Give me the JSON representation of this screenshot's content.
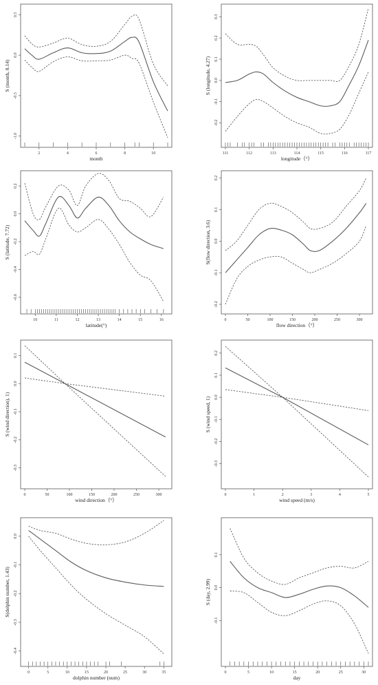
{
  "chart_data": [
    {
      "type": "line",
      "xlabel": "month",
      "ylabel": "S (month, 8.14)",
      "xlim": [
        1,
        11
      ],
      "ylim": [
        -1.02,
        0.58
      ],
      "xticks": [
        2,
        4,
        6,
        8,
        10
      ],
      "yticks": [
        -1.0,
        -0.5,
        0.0,
        0.5
      ],
      "ytick_labels": [
        "-1.0",
        "-0.5",
        "0.0",
        "0.5"
      ],
      "x": [
        1,
        1.5,
        2,
        3,
        4,
        5,
        6,
        7,
        8,
        8.5,
        9,
        10,
        11
      ],
      "fit": [
        0.08,
        0.0,
        -0.05,
        0.03,
        0.09,
        0.03,
        0.02,
        0.05,
        0.17,
        0.22,
        0.16,
        -0.33,
        -0.69
      ],
      "lower": [
        -0.06,
        -0.15,
        -0.2,
        -0.08,
        -0.02,
        -0.07,
        -0.07,
        -0.06,
        0.0,
        -0.04,
        -0.1,
        -0.58,
        -1.02
      ],
      "upper": [
        0.24,
        0.14,
        0.1,
        0.15,
        0.21,
        0.13,
        0.11,
        0.17,
        0.38,
        0.48,
        0.44,
        -0.11,
        -0.38
      ],
      "rug": [
        1,
        2,
        3,
        4,
        5,
        6,
        7,
        8,
        8.7,
        9,
        10,
        11
      ]
    },
    {
      "type": "line",
      "xlabel": "longitude（°）",
      "ylabel": "S (longitude, 4.27)",
      "xlim": [
        111,
        117
      ],
      "ylim": [
        -0.27,
        0.34
      ],
      "xticks": [
        111,
        112,
        113,
        114,
        115,
        116,
        117
      ],
      "yticks": [
        -0.2,
        -0.1,
        0.0,
        0.1,
        0.2,
        0.3
      ],
      "ytick_labels": [
        "-0.2",
        "-0.1",
        "0.0",
        "0.1",
        "0.2",
        "0.3"
      ],
      "x": [
        111,
        111.5,
        112,
        112.3,
        112.6,
        113,
        113.5,
        114,
        114.5,
        115,
        115.4,
        115.8,
        116.2,
        116.6,
        117
      ],
      "fit": [
        -0.01,
        0.0,
        0.03,
        0.04,
        0.03,
        -0.01,
        -0.05,
        -0.08,
        -0.1,
        -0.12,
        -0.12,
        -0.1,
        -0.02,
        0.07,
        0.19
      ],
      "lower": [
        -0.24,
        -0.17,
        -0.11,
        -0.09,
        -0.1,
        -0.13,
        -0.17,
        -0.2,
        -0.22,
        -0.25,
        -0.25,
        -0.23,
        -0.16,
        -0.06,
        0.04
      ],
      "upper": [
        0.22,
        0.17,
        0.17,
        0.16,
        0.12,
        0.06,
        0.02,
        0.0,
        0.0,
        0.0,
        0.0,
        0.0,
        0.07,
        0.17,
        0.34
      ],
      "rug": [
        111,
        111.1,
        111.2,
        111.5,
        111.7,
        111.8,
        112.0,
        112.1,
        112.2,
        112.5,
        112.6,
        112.8,
        112.9,
        113.0,
        113.1,
        113.2,
        113.3,
        113.4,
        113.5,
        113.6,
        113.7,
        113.8,
        113.9,
        114.0,
        114.1,
        114.2,
        114.3,
        114.4,
        114.5,
        114.6,
        114.7,
        114.8,
        114.9,
        115.0,
        115.1,
        115.2,
        115.3,
        115.5,
        115.6,
        115.8,
        115.9,
        116.0,
        116.1,
        116.2,
        116.4,
        116.5,
        116.6,
        116.7,
        116.8,
        116.9,
        117
      ]
    },
    {
      "type": "line",
      "xlabel": "latitude(°)",
      "ylabel": "S (latitude, 7.72)",
      "xlim": [
        9.5,
        16.3
      ],
      "ylim": [
        -0.65,
        0.28
      ],
      "xticks": [
        10,
        11,
        12,
        13,
        14,
        15,
        16
      ],
      "yticks": [
        -0.6,
        -0.4,
        -0.2,
        0.0,
        0.2
      ],
      "ytick_labels": [
        "-0.6",
        "-0.4",
        "-0.2",
        "0.0",
        "0.2"
      ],
      "x": [
        9.5,
        9.9,
        10.2,
        10.5,
        11.1,
        11.6,
        12.0,
        12.4,
        13.0,
        13.5,
        14.0,
        14.5,
        15.0,
        15.5,
        16.1
      ],
      "fit": [
        -0.05,
        -0.12,
        -0.16,
        -0.07,
        0.12,
        0.06,
        -0.03,
        0.04,
        0.12,
        0.06,
        -0.05,
        -0.13,
        -0.18,
        -0.22,
        -0.25
      ],
      "lower": [
        -0.3,
        -0.27,
        -0.29,
        -0.18,
        0.04,
        -0.08,
        -0.13,
        -0.1,
        -0.04,
        -0.11,
        -0.22,
        -0.35,
        -0.44,
        -0.48,
        -0.63
      ],
      "upper": [
        0.22,
        0.0,
        -0.04,
        0.05,
        0.2,
        0.17,
        0.06,
        0.2,
        0.29,
        0.24,
        0.11,
        0.09,
        0.04,
        -0.02,
        0.12
      ],
      "rug": [
        9.6,
        9.8,
        10.0,
        10.1,
        10.2,
        10.3,
        10.4,
        10.5,
        10.6,
        10.7,
        10.8,
        10.9,
        11.0,
        11.1,
        11.2,
        11.3,
        11.4,
        11.5,
        11.6,
        11.7,
        11.8,
        11.9,
        12.0,
        12.1,
        12.2,
        12.3,
        12.4,
        12.5,
        12.6,
        12.7,
        12.8,
        12.9,
        13.0,
        13.1,
        13.2,
        13.3,
        13.4,
        13.5,
        13.6,
        13.7,
        13.8,
        14.0,
        14.2,
        14.4,
        14.6,
        14.8,
        15.0,
        15.2,
        15.5,
        15.8,
        16.1
      ]
    },
    {
      "type": "line",
      "xlabel": "flow direction（°）",
      "ylabel": "S(flow direction, 3.6)",
      "xlim": [
        0,
        320
      ],
      "ylim": [
        -0.2,
        0.21
      ],
      "xticks": [
        0,
        50,
        100,
        150,
        200,
        250,
        300
      ],
      "yticks": [
        -0.2,
        -0.1,
        0.0,
        0.1,
        0.2
      ],
      "ytick_labels": [
        "-0.2",
        "-0.1",
        "0.0",
        "0.1",
        "0.2"
      ],
      "x": [
        0,
        25,
        50,
        75,
        100,
        125,
        150,
        175,
        190,
        210,
        240,
        270,
        300,
        315
      ],
      "fit": [
        -0.1,
        -0.06,
        -0.02,
        0.02,
        0.04,
        0.035,
        0.02,
        -0.01,
        -0.03,
        -0.03,
        0.0,
        0.04,
        0.09,
        0.12
      ],
      "lower": [
        -0.2,
        -0.12,
        -0.08,
        -0.06,
        -0.05,
        -0.05,
        -0.07,
        -0.09,
        -0.1,
        -0.09,
        -0.07,
        -0.04,
        0.0,
        0.05
      ],
      "upper": [
        -0.03,
        0.0,
        0.05,
        0.1,
        0.12,
        0.11,
        0.09,
        0.06,
        0.04,
        0.04,
        0.06,
        0.11,
        0.16,
        0.2
      ],
      "rug": []
    },
    {
      "type": "line",
      "xlabel": "wind direction（°）",
      "ylabel": "S (wind direction), 1)",
      "xlim": [
        0,
        320
      ],
      "ylim": [
        -0.34,
        0.14
      ],
      "xticks": [
        0,
        50,
        100,
        150,
        200,
        250,
        300
      ],
      "yticks": [
        -0.3,
        -0.2,
        -0.1,
        0.0,
        0.1
      ],
      "ytick_labels": [
        "-0.3",
        "-0.2",
        "-0.1",
        "0.0",
        "0.1"
      ],
      "x": [
        0,
        90,
        315
      ],
      "fit": [
        0.076,
        0.0,
        -0.19
      ],
      "lower": [
        0.02,
        0.0,
        -0.33
      ],
      "upper": [
        0.135,
        0.0,
        -0.045
      ],
      "rug": []
    },
    {
      "type": "line",
      "xlabel": "wind speed (m/s)",
      "ylabel": "S (wind speed, 1)",
      "xlim": [
        0,
        5
      ],
      "ylim": [
        -0.37,
        0.24
      ],
      "xticks": [
        0,
        1,
        2,
        3,
        4,
        5
      ],
      "yticks": [
        -0.3,
        -0.2,
        -0.1,
        0.0,
        0.1,
        0.2
      ],
      "ytick_labels": [
        "-0.3",
        "-0.2",
        "-0.1",
        "0.0",
        "0.1",
        "0.2"
      ],
      "x": [
        0,
        2,
        5
      ],
      "fit": [
        0.133,
        0.0,
        -0.215
      ],
      "lower": [
        0.035,
        0.0,
        -0.36
      ],
      "upper": [
        0.23,
        0.0,
        -0.06
      ],
      "rug": []
    },
    {
      "type": "line",
      "xlabel": "dolphin number (num)",
      "ylabel": "S(dolphin number, 1.43)",
      "xlim": [
        -1,
        36
      ],
      "ylim": [
        -0.42,
        0.05
      ],
      "xticks": [
        0,
        5,
        10,
        15,
        20,
        25,
        30,
        35
      ],
      "yticks": [
        -0.4,
        -0.3,
        -0.2,
        -0.1,
        0.0
      ],
      "ytick_labels": [
        "-0.4",
        "-0.3",
        "-0.2",
        "-0.1",
        "0.0"
      ],
      "x": [
        0,
        3,
        7,
        11,
        15,
        20,
        25,
        30,
        35
      ],
      "fit": [
        0.02,
        -0.01,
        -0.05,
        -0.09,
        -0.12,
        -0.145,
        -0.16,
        -0.17,
        -0.175
      ],
      "lower": [
        0.0,
        -0.05,
        -0.11,
        -0.17,
        -0.22,
        -0.27,
        -0.31,
        -0.35,
        -0.41
      ],
      "upper": [
        0.035,
        0.02,
        0.01,
        -0.01,
        -0.025,
        -0.03,
        -0.02,
        0.01,
        0.055
      ],
      "rug": [
        0,
        1,
        2,
        3,
        4,
        5,
        6,
        7,
        8,
        9,
        10,
        11,
        12,
        13,
        14,
        15,
        16,
        17,
        18,
        20,
        21,
        24,
        34,
        35
      ]
    },
    {
      "type": "line",
      "xlabel": "day",
      "ylabel": "S (day, 2.99)",
      "xlim": [
        0,
        31
      ],
      "ylim": [
        -0.21,
        0.2
      ],
      "xticks": [
        0,
        5,
        10,
        15,
        20,
        25,
        30
      ],
      "yticks": [
        -0.1,
        0.0,
        0.1
      ],
      "ytick_labels": [
        "-0.1",
        "0.0",
        "0.1"
      ],
      "x": [
        1,
        4,
        7,
        10,
        13,
        16,
        19,
        22,
        25,
        28,
        31
      ],
      "fit": [
        0.08,
        0.03,
        0.0,
        -0.015,
        -0.03,
        -0.02,
        -0.005,
        0.005,
        0.0,
        -0.025,
        -0.06
      ],
      "lower": [
        -0.01,
        -0.015,
        -0.045,
        -0.075,
        -0.085,
        -0.07,
        -0.05,
        -0.04,
        -0.055,
        -0.11,
        -0.2
      ],
      "upper": [
        0.18,
        0.09,
        0.045,
        0.02,
        0.01,
        0.03,
        0.045,
        0.06,
        0.065,
        0.06,
        0.08
      ],
      "rug": [
        1,
        2,
        3,
        4,
        5,
        6,
        7,
        8,
        9,
        10,
        11,
        12,
        13,
        14,
        15,
        16,
        17,
        18,
        19,
        20,
        21,
        22,
        23,
        24,
        25,
        26,
        27,
        28,
        29,
        30,
        31
      ]
    }
  ]
}
